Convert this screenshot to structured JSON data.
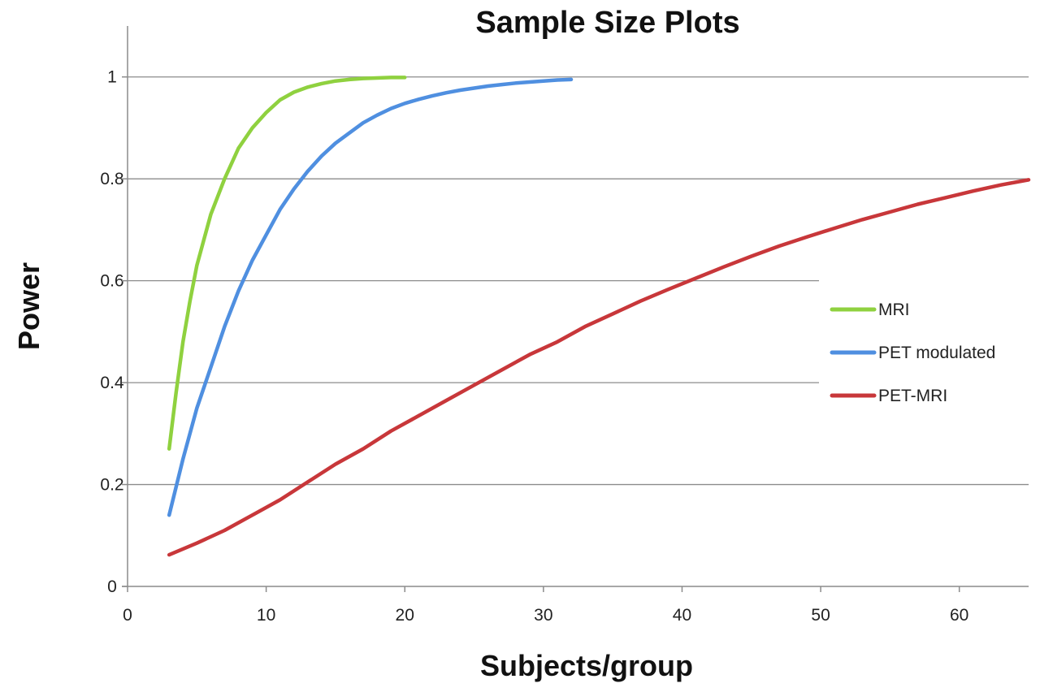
{
  "chart_data": {
    "type": "line",
    "title": "Sample Size Plots",
    "xlabel": "Subjects/group",
    "ylabel": "Power",
    "xlim": [
      0,
      65
    ],
    "ylim": [
      0,
      1.1
    ],
    "xticks": [
      0,
      10,
      20,
      30,
      40,
      50,
      60
    ],
    "yticks": [
      0,
      0.2,
      0.4,
      0.6,
      0.8,
      1
    ],
    "xtick_labels": [
      "0",
      "10",
      "20",
      "30",
      "40",
      "50",
      "60"
    ],
    "ytick_labels": [
      "0",
      "0.2",
      "0.4",
      "0.6",
      "0.8",
      "1"
    ],
    "grid": true,
    "legend_position": "right",
    "series": [
      {
        "name": "MRI",
        "color": "#8fd13f",
        "x": [
          3,
          3.5,
          4,
          4.5,
          5,
          6,
          7,
          8,
          9,
          10,
          11,
          12,
          13,
          14,
          15,
          16,
          17,
          18,
          19,
          20
        ],
        "y": [
          0.27,
          0.38,
          0.48,
          0.56,
          0.63,
          0.73,
          0.8,
          0.86,
          0.9,
          0.93,
          0.955,
          0.97,
          0.98,
          0.987,
          0.992,
          0.995,
          0.997,
          0.998,
          0.999,
          0.999
        ]
      },
      {
        "name": "PET modulated",
        "color": "#4f8fe0",
        "x": [
          3,
          4,
          5,
          6,
          7,
          8,
          9,
          10,
          11,
          12,
          13,
          14,
          15,
          16,
          17,
          18,
          19,
          20,
          21,
          22,
          23,
          24,
          25,
          26,
          27,
          28,
          29,
          30,
          31,
          32
        ],
        "y": [
          0.14,
          0.25,
          0.35,
          0.43,
          0.51,
          0.58,
          0.64,
          0.69,
          0.74,
          0.78,
          0.815,
          0.845,
          0.87,
          0.89,
          0.91,
          0.925,
          0.938,
          0.948,
          0.956,
          0.963,
          0.969,
          0.974,
          0.978,
          0.982,
          0.985,
          0.988,
          0.99,
          0.992,
          0.994,
          0.995
        ]
      },
      {
        "name": "PET-MRI",
        "color": "#c8373a",
        "x": [
          3,
          5,
          7,
          9,
          11,
          13,
          15,
          17,
          19,
          21,
          23,
          25,
          27,
          29,
          31,
          33,
          35,
          37,
          39,
          41,
          43,
          45,
          47,
          49,
          51,
          53,
          55,
          57,
          59,
          61,
          63,
          65
        ],
        "y": [
          0.062,
          0.085,
          0.11,
          0.14,
          0.17,
          0.205,
          0.24,
          0.27,
          0.305,
          0.335,
          0.365,
          0.395,
          0.425,
          0.455,
          0.48,
          0.51,
          0.535,
          0.56,
          0.583,
          0.605,
          0.627,
          0.648,
          0.668,
          0.686,
          0.703,
          0.72,
          0.735,
          0.75,
          0.763,
          0.776,
          0.788,
          0.798
        ]
      }
    ]
  }
}
